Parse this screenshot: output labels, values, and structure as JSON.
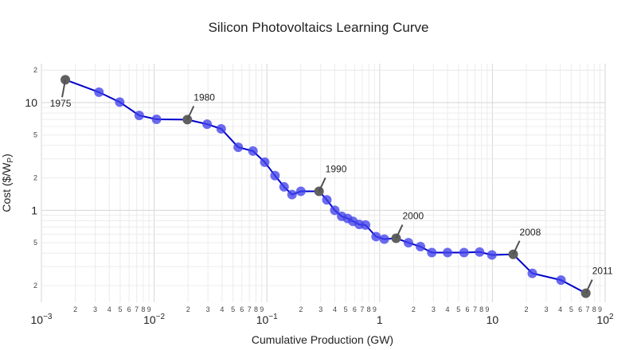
{
  "chart_data": {
    "type": "scatter",
    "mode": "lines+markers",
    "title": "Silicon Photovoltaics Learning Curve",
    "xlabel": "Cumulative Production (GW)",
    "ylabel": "Cost ($/W",
    "ylabel_sub": "P",
    "ylabel_tail": ")",
    "x_scale": "log",
    "y_scale": "log",
    "xlim": [
      0.001,
      100
    ],
    "ylim": [
      0.14,
      23
    ],
    "x_major_ticks": [
      {
        "value": 0.001,
        "base": "10",
        "exp": "−3"
      },
      {
        "value": 0.01,
        "base": "10",
        "exp": "−2"
      },
      {
        "value": 0.1,
        "base": "10",
        "exp": "−1"
      },
      {
        "value": 1,
        "base": "1",
        "exp": ""
      },
      {
        "value": 10,
        "base": "10",
        "exp": ""
      },
      {
        "value": 100,
        "base": "10",
        "exp": "2"
      }
    ],
    "y_major_ticks": [
      {
        "value": 1,
        "label": "1"
      },
      {
        "value": 10,
        "label": "10"
      }
    ],
    "y_minor_labels": [
      {
        "value": 0.2,
        "label": "2"
      },
      {
        "value": 0.5,
        "label": "5"
      },
      {
        "value": 2,
        "label": "2"
      },
      {
        "value": 5,
        "label": "5"
      },
      {
        "value": 20,
        "label": "2"
      }
    ],
    "grid": true,
    "colors": {
      "line": "#0000cc",
      "marker": "#4141eb",
      "annotated_marker": "#606060"
    },
    "series": [
      {
        "x": [
          0.00163,
          0.00324,
          0.00495,
          0.00737,
          0.0105,
          0.0197,
          0.0295,
          0.0393,
          0.0557,
          0.0752,
          0.0957,
          0.118,
          0.142,
          0.167,
          0.2,
          0.29,
          0.34,
          0.4,
          0.46,
          0.52,
          0.58,
          0.66,
          0.75,
          0.93,
          1.1,
          1.4,
          1.8,
          2.3,
          2.9,
          4.0,
          5.6,
          7.7,
          9.9,
          15.3,
          22.6,
          40.6,
          67.4
        ],
        "y": [
          16.3,
          12.5,
          10.1,
          7.6,
          7.0,
          6.95,
          6.3,
          5.7,
          3.85,
          3.55,
          2.8,
          2.1,
          1.65,
          1.4,
          1.5,
          1.5,
          1.25,
          1.0,
          0.88,
          0.84,
          0.79,
          0.74,
          0.73,
          0.57,
          0.54,
          0.55,
          0.5,
          0.46,
          0.405,
          0.405,
          0.405,
          0.41,
          0.385,
          0.39,
          0.26,
          0.225,
          0.17
        ]
      }
    ],
    "annotations": [
      {
        "text": "1975",
        "x": 0.00163,
        "y": 16.3,
        "position": "below-left"
      },
      {
        "text": "1980",
        "x": 0.0197,
        "y": 6.95,
        "position": "above-right"
      },
      {
        "text": "1990",
        "x": 0.29,
        "y": 1.5,
        "position": "above-right"
      },
      {
        "text": "2000",
        "x": 1.4,
        "y": 0.55,
        "position": "above-right"
      },
      {
        "text": "2008",
        "x": 15.3,
        "y": 0.39,
        "position": "above-right"
      },
      {
        "text": "2011",
        "x": 67.4,
        "y": 0.17,
        "position": "above-right"
      }
    ]
  }
}
